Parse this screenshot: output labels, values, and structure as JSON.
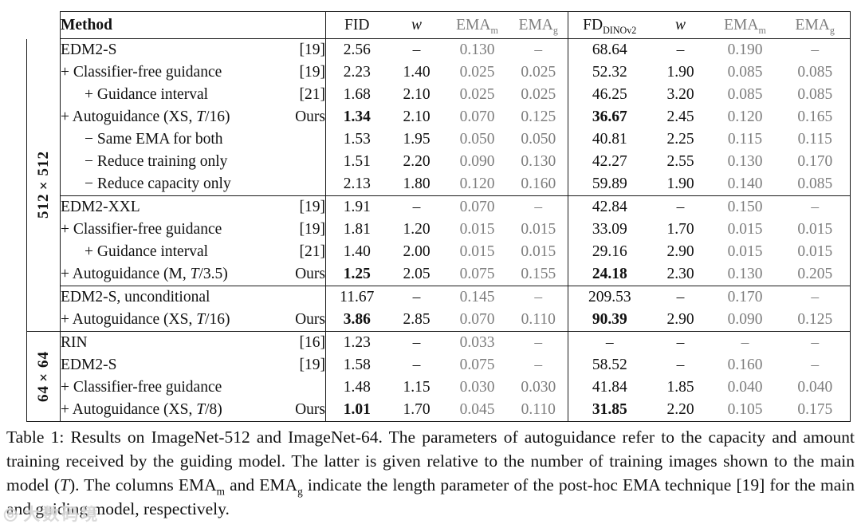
{
  "colors": {
    "text": "#111111",
    "gray_values": "#7d7d7d",
    "border": "#1a1a1a",
    "background": "#ffffff"
  },
  "table": {
    "method_header": "Method",
    "gray_column_indices": [
      2,
      3,
      6,
      7
    ],
    "columns": [
      {
        "label": "FID",
        "sub": "",
        "italic": false,
        "gray": false
      },
      {
        "label": "w",
        "sub": "",
        "italic": true,
        "gray": false
      },
      {
        "label": "EMA",
        "sub": "m",
        "italic": false,
        "gray": true
      },
      {
        "label": "EMA",
        "sub": "g",
        "italic": false,
        "gray": true
      },
      {
        "label": "FD",
        "sub": "DINOv2",
        "italic": false,
        "gray": false
      },
      {
        "label": "w",
        "sub": "",
        "italic": true,
        "gray": false
      },
      {
        "label": "EMA",
        "sub": "m",
        "italic": false,
        "gray": true
      },
      {
        "label": "EMA",
        "sub": "g",
        "italic": false,
        "gray": true
      }
    ],
    "blocks": [
      {
        "label": "512×512",
        "sections": [
          {
            "rows": [
              {
                "method": "EDM2-S",
                "ref": "[19]",
                "indent": 0,
                "ours": false,
                "vals": [
                  "2.56",
                  "–",
                  "0.130",
                  "–",
                  "68.64",
                  "–",
                  "0.190",
                  "–"
                ]
              },
              {
                "method": "+ Classifier-free guidance",
                "ref": "[19]",
                "indent": 0,
                "ours": false,
                "vals": [
                  "2.23",
                  "1.40",
                  "0.025",
                  "0.025",
                  "52.32",
                  "1.90",
                  "0.085",
                  "0.085"
                ]
              },
              {
                "method": "+ Guidance interval",
                "ref": "[21]",
                "indent": 1,
                "ours": false,
                "vals": [
                  "1.68",
                  "2.10",
                  "0.025",
                  "0.025",
                  "46.25",
                  "3.20",
                  "0.085",
                  "0.085"
                ]
              },
              {
                "method": "+ Autoguidance (XS, T/16)",
                "ref": "Ours",
                "indent": 0,
                "ours": true,
                "vals": [
                  "1.34",
                  "2.10",
                  "0.070",
                  "0.125",
                  "36.67",
                  "2.45",
                  "0.120",
                  "0.165"
                ]
              },
              {
                "method": "− Same EMA for both",
                "ref": "",
                "indent": 1,
                "ours": false,
                "vals": [
                  "1.53",
                  "1.95",
                  "0.050",
                  "0.050",
                  "40.81",
                  "2.25",
                  "0.115",
                  "0.115"
                ]
              },
              {
                "method": "− Reduce training only",
                "ref": "",
                "indent": 1,
                "ours": false,
                "vals": [
                  "1.51",
                  "2.20",
                  "0.090",
                  "0.130",
                  "42.27",
                  "2.55",
                  "0.130",
                  "0.170"
                ]
              },
              {
                "method": "− Reduce capacity only",
                "ref": "",
                "indent": 1,
                "ours": false,
                "vals": [
                  "2.13",
                  "1.80",
                  "0.120",
                  "0.160",
                  "59.89",
                  "1.90",
                  "0.140",
                  "0.085"
                ]
              }
            ]
          },
          {
            "rows": [
              {
                "method": "EDM2-XXL",
                "ref": "[19]",
                "indent": 0,
                "ours": false,
                "vals": [
                  "1.91",
                  "–",
                  "0.070",
                  "–",
                  "42.84",
                  "–",
                  "0.150",
                  "–"
                ]
              },
              {
                "method": "+ Classifier-free guidance",
                "ref": "[19]",
                "indent": 0,
                "ours": false,
                "vals": [
                  "1.81",
                  "1.20",
                  "0.015",
                  "0.015",
                  "33.09",
                  "1.70",
                  "0.015",
                  "0.015"
                ]
              },
              {
                "method": "+ Guidance interval",
                "ref": "[21]",
                "indent": 1,
                "ours": false,
                "vals": [
                  "1.40",
                  "2.00",
                  "0.015",
                  "0.015",
                  "29.16",
                  "2.90",
                  "0.015",
                  "0.015"
                ]
              },
              {
                "method": "+ Autoguidance (M, T/3.5)",
                "ref": "Ours",
                "indent": 0,
                "ours": true,
                "vals": [
                  "1.25",
                  "2.05",
                  "0.075",
                  "0.155",
                  "24.18",
                  "2.30",
                  "0.130",
                  "0.205"
                ]
              }
            ]
          },
          {
            "rows": [
              {
                "method": "EDM2-S, unconditional",
                "ref": "",
                "indent": 0,
                "ours": false,
                "vals": [
                  "11.67",
                  "–",
                  "0.145",
                  "–",
                  "209.53",
                  "–",
                  "0.170",
                  "–"
                ]
              },
              {
                "method": "+ Autoguidance (XS, T/16)",
                "ref": "Ours",
                "indent": 0,
                "ours": true,
                "vals": [
                  "3.86",
                  "2.85",
                  "0.070",
                  "0.110",
                  "90.39",
                  "2.90",
                  "0.090",
                  "0.125"
                ]
              }
            ]
          }
        ]
      },
      {
        "label": "64×64",
        "sections": [
          {
            "rows": [
              {
                "method": "RIN",
                "ref": "[16]",
                "indent": 0,
                "ours": false,
                "vals": [
                  "1.23",
                  "–",
                  "0.033",
                  "–",
                  "–",
                  "–",
                  "–",
                  "–"
                ]
              },
              {
                "method": "EDM2-S",
                "ref": "[19]",
                "indent": 0,
                "ours": false,
                "vals": [
                  "1.58",
                  "–",
                  "0.075",
                  "–",
                  "58.52",
                  "–",
                  "0.160",
                  "–"
                ]
              },
              {
                "method": "+ Classifier-free guidance",
                "ref": "",
                "indent": 0,
                "ours": false,
                "vals": [
                  "1.48",
                  "1.15",
                  "0.030",
                  "0.030",
                  "41.84",
                  "1.85",
                  "0.040",
                  "0.040"
                ]
              },
              {
                "method": "+ Autoguidance (XS, T/8)",
                "ref": "Ours",
                "indent": 0,
                "ours": true,
                "vals": [
                  "1.01",
                  "1.70",
                  "0.045",
                  "0.110",
                  "31.85",
                  "2.20",
                  "0.105",
                  "0.175"
                ]
              }
            ]
          }
        ]
      }
    ]
  },
  "caption": {
    "parts": [
      {
        "t": "Table 1: Results on ImageNet-512 and ImageNet-64. The parameters of autoguidance refer to the capacity and amount training received by the guiding model. The latter is given relative to the number of training images shown to the main model (",
        "style": ""
      },
      {
        "t": "T",
        "style": "italic"
      },
      {
        "t": "). The columns EMA",
        "style": ""
      },
      {
        "t": "m",
        "style": "sub"
      },
      {
        "t": " and EMA",
        "style": ""
      },
      {
        "t": "g",
        "style": "sub"
      },
      {
        "t": " indicate the length parameter of the post-hoc EMA technique [19] for the main and guiding model, respectively.",
        "style": ""
      }
    ]
  },
  "watermark": {
    "icon": "◎",
    "text": "大数码境"
  }
}
